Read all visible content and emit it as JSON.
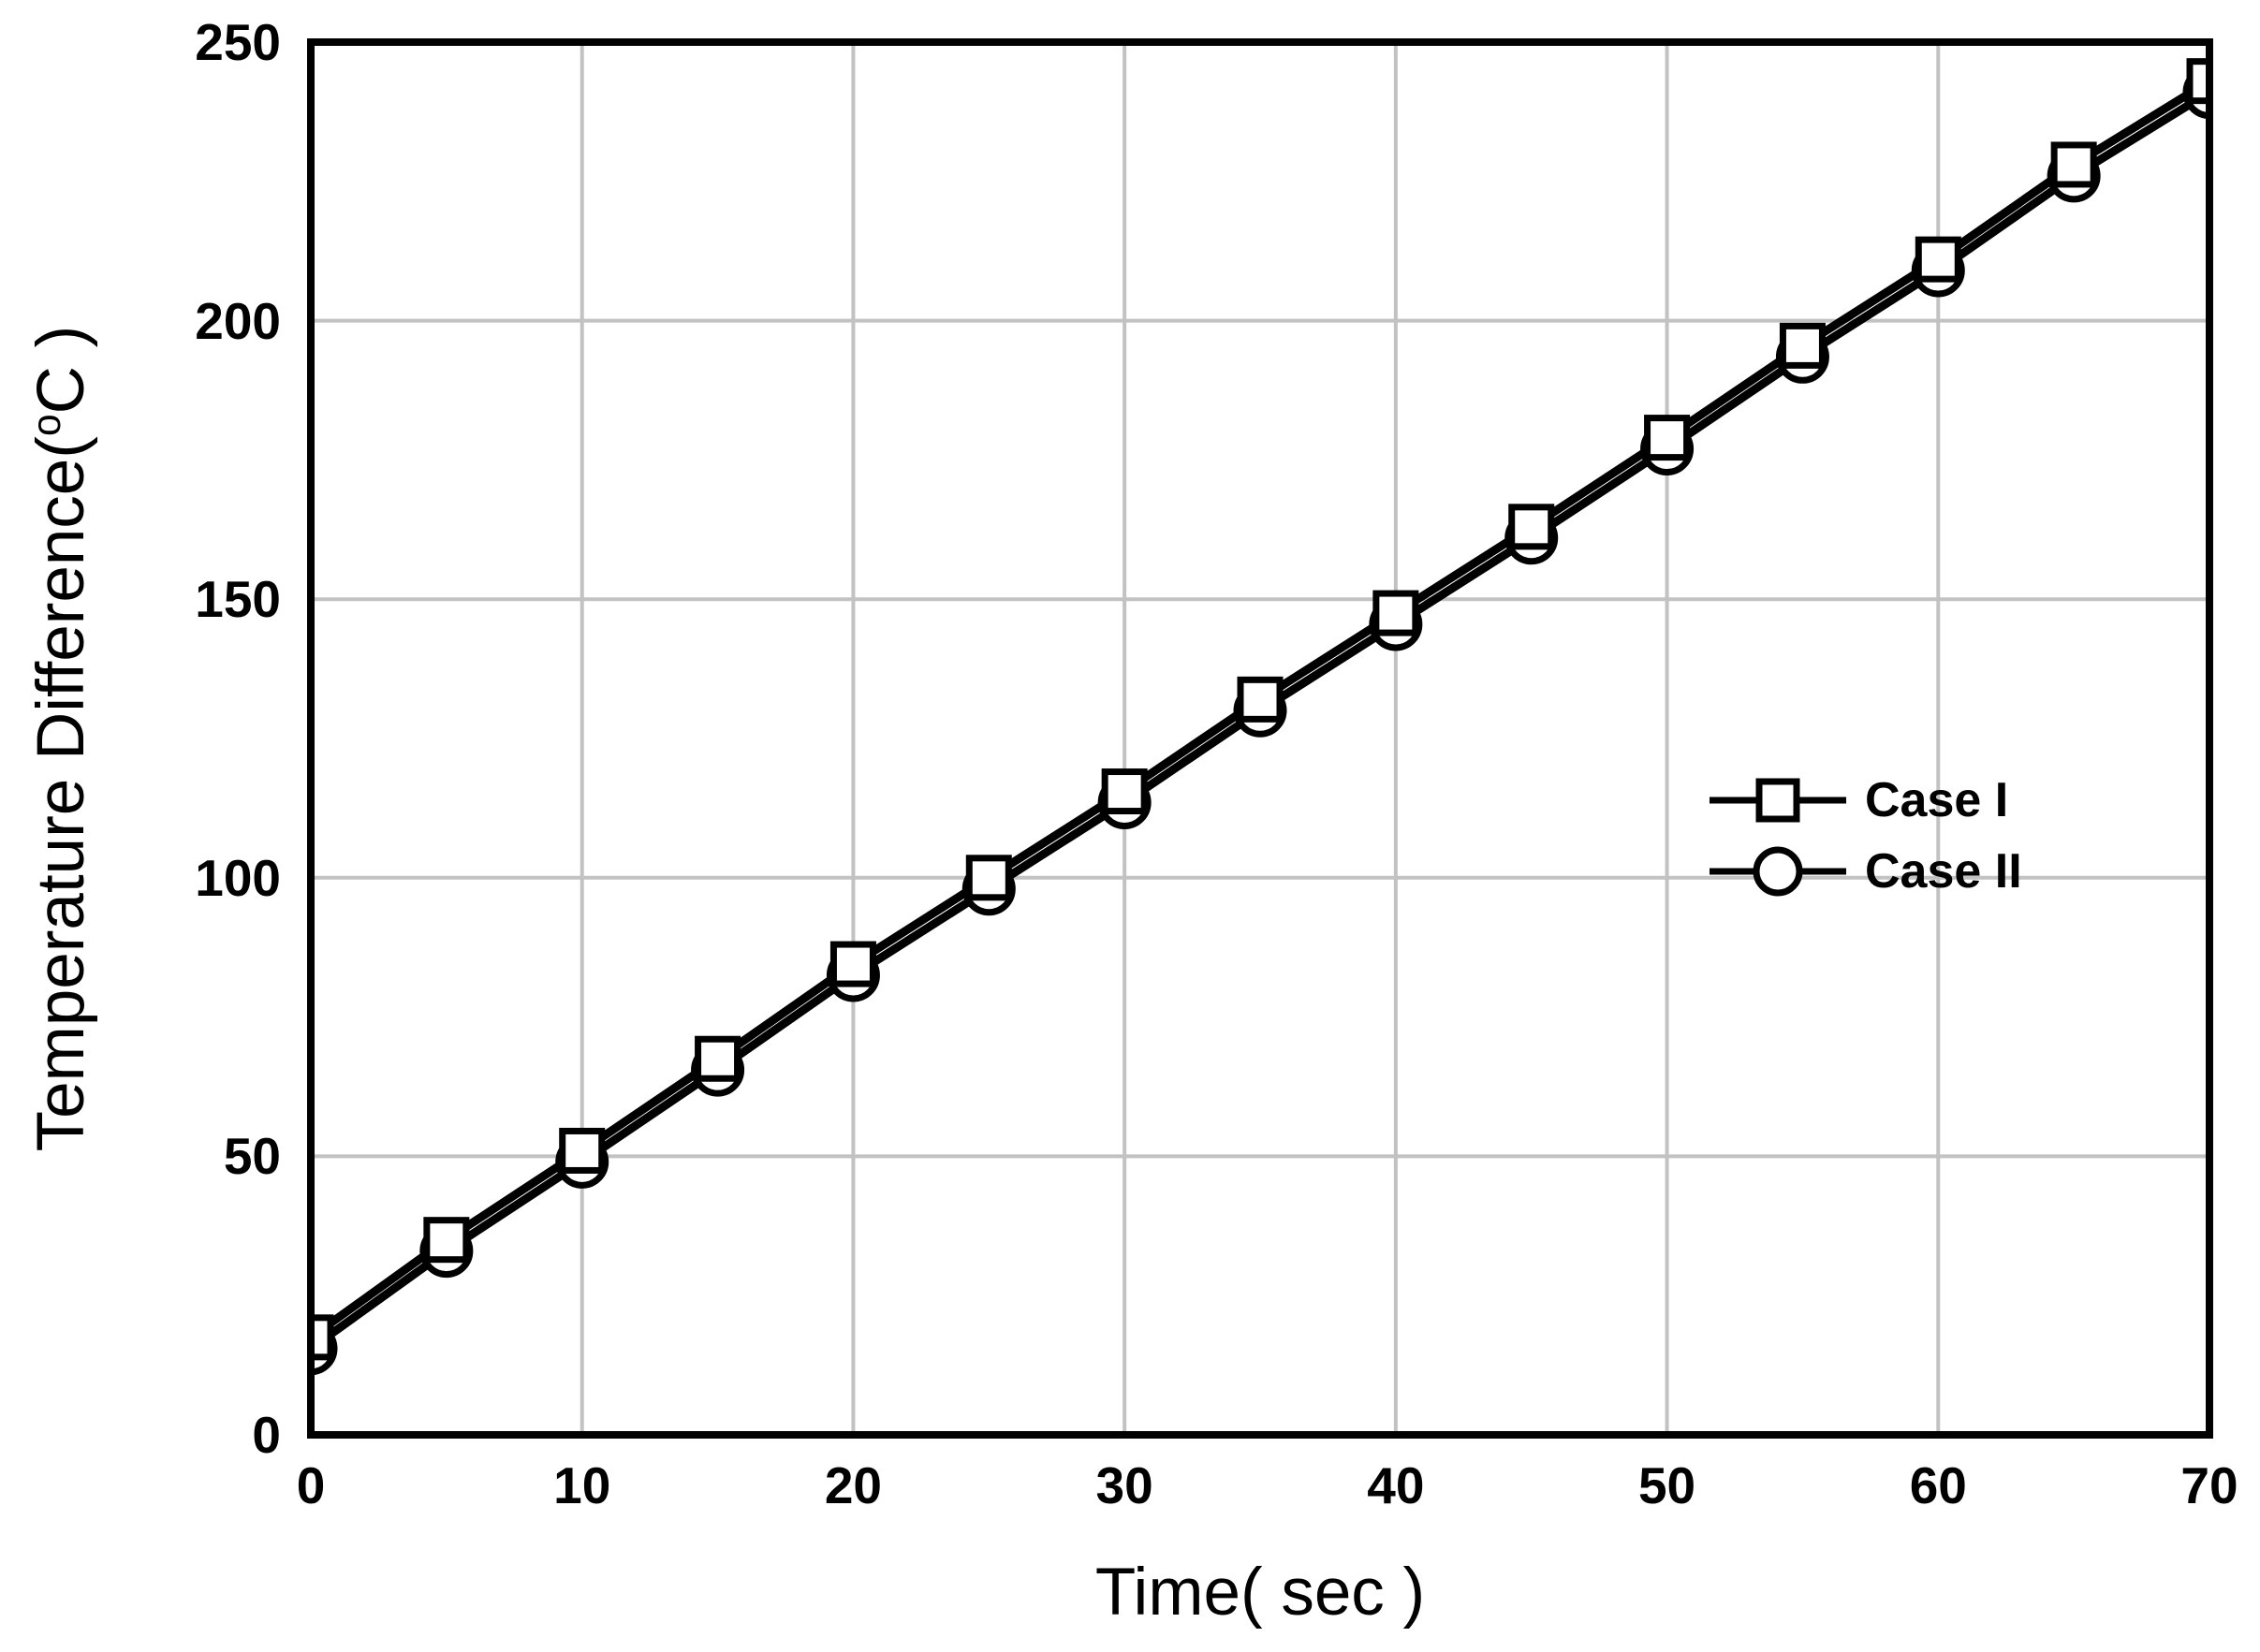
{
  "chart_data": {
    "type": "line",
    "title": "",
    "xlabel": "Time( sec )",
    "ylabel": "Temperature Difference( °C )",
    "ylabel_parts": [
      "Temperature Difference(",
      "o",
      "C )"
    ],
    "x": [
      0,
      5,
      10,
      15,
      20,
      25,
      30,
      35,
      40,
      45,
      50,
      55,
      60,
      65,
      70
    ],
    "series": [
      {
        "name": "Case I",
        "marker": "square",
        "values": [
          17.5,
          35,
          51,
          67.5,
          84.5,
          100,
          115.5,
          132,
          147.5,
          163,
          179,
          195.5,
          211,
          228,
          243
        ]
      },
      {
        "name": "Case II",
        "marker": "circle",
        "values": [
          15.5,
          33,
          49,
          65.5,
          82.5,
          98,
          113.5,
          130,
          145.5,
          161,
          177,
          193.5,
          209,
          226,
          241
        ]
      }
    ],
    "xlim": [
      0,
      70
    ],
    "ylim": [
      0,
      250
    ],
    "xticks": [
      0,
      10,
      20,
      30,
      40,
      50,
      60,
      70
    ],
    "yticks": [
      0,
      50,
      100,
      150,
      200,
      250
    ],
    "grid": true,
    "legend_position": "right-middle",
    "colors": {
      "line": "#000000",
      "grid": "#c2c2c2",
      "marker_fill": "#ffffff",
      "text": "#000000",
      "background": "#ffffff"
    }
  }
}
